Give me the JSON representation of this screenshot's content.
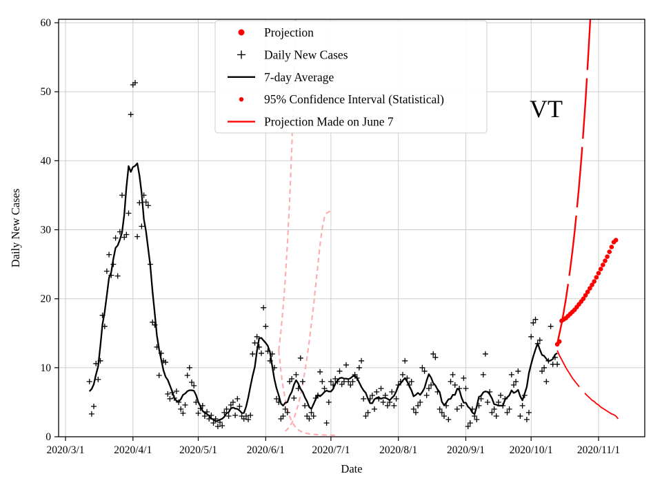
{
  "chart_data": {
    "type": "scatter",
    "title": "",
    "xlabel": "Date",
    "ylabel": "Daily New Cases",
    "annotation": "VT",
    "ylim": [
      0,
      60
    ],
    "grid": true,
    "legend_position": "upper center-left",
    "y_ticks": [
      "0",
      "10",
      "20",
      "30",
      "40",
      "50",
      "60"
    ],
    "x_ticks": [
      "2020/3/1",
      "2020/4/1",
      "2020/5/1",
      "2020/6/1",
      "2020/7/1",
      "2020/8/1",
      "2020/9/1",
      "2020/10/1",
      "2020/11/1"
    ],
    "colors": {
      "cases": "#000000",
      "average": "#000000",
      "projection": "#ff0000",
      "june_ci": "#ffabab",
      "grid": "#c8c8c8"
    },
    "legend": [
      {
        "label": "Projection",
        "marker": "dot",
        "color": "#ff0000",
        "r": 4.5
      },
      {
        "label": "Daily New Cases",
        "marker": "plus",
        "color": "#000000"
      },
      {
        "label": "7-day Average",
        "marker": "line",
        "color": "#000000"
      },
      {
        "label": "95% Confidence Interval (Statistical)",
        "marker": "dot",
        "color": "#ff0000",
        "r": 3.2
      },
      {
        "label": "Projection Made on June 7",
        "marker": "line",
        "color": "#ff0000"
      }
    ],
    "series": {
      "daily_new_cases": {
        "start_date": "2020/3/12",
        "values": [
          8.0,
          3.3,
          4.4,
          10.6,
          8.3,
          11.0,
          17.6,
          16.0,
          24.0,
          26.4,
          23.4,
          25.0,
          28.8,
          23.3,
          29.7,
          35.0,
          28.9,
          29.3,
          32.4,
          46.7,
          51.0,
          51.3,
          29.0,
          33.9,
          30.5,
          35.0,
          34.0,
          33.5,
          25.0,
          16.6,
          16.2,
          13.0,
          8.9,
          12.1,
          11.0,
          10.8,
          6.2,
          5.5,
          6.4,
          5.6,
          6.6,
          5.0,
          4.0,
          3.4,
          4.6,
          8.9,
          10.0,
          7.9,
          7.4,
          5.0,
          3.4,
          4.1,
          4.5,
          3.0,
          3.6,
          2.6,
          3.1,
          2.0,
          2.6,
          1.5,
          2.1,
          1.6,
          3.5,
          4.0,
          3.0,
          4.6,
          5.0,
          3.1,
          5.5,
          4.4,
          3.0,
          2.6,
          3.0,
          2.5,
          3.1,
          12.0,
          13.6,
          14.5,
          13.0,
          12.1,
          18.7,
          16.0,
          12.4,
          11.0,
          12.0,
          10.0,
          5.5,
          5.0,
          2.6,
          3.0,
          4.0,
          3.5,
          8.0,
          8.4,
          5.6,
          9.0,
          7.0,
          11.4,
          8.0,
          4.5,
          3.0,
          2.6,
          3.5,
          3.0,
          5.6,
          6.0,
          9.4,
          8.0,
          7.0,
          2.0,
          5.0,
          8.0,
          7.5,
          8.4,
          8.0,
          9.5,
          7.6,
          8.0,
          10.4,
          8.0,
          7.5,
          8.0,
          9.0,
          8.5,
          10.0,
          11.0,
          5.5,
          3.0,
          3.5,
          5.5,
          6.0,
          4.0,
          6.5,
          5.5,
          7.0,
          5.0,
          6.0,
          4.5,
          5.0,
          6.5,
          4.5,
          5.5,
          7.5,
          8.0,
          9.0,
          11.0,
          8.5,
          7.5,
          8.0,
          4.0,
          3.5,
          4.5,
          5.0,
          10.0,
          9.5,
          6.0,
          7.0,
          7.5,
          12.0,
          11.5,
          6.5,
          4.0,
          3.5,
          3.0,
          4.5,
          2.5,
          8.0,
          9.0,
          7.5,
          4.0,
          7.0,
          4.5,
          8.5,
          7.0,
          1.5,
          2.0,
          4.0,
          3.0,
          2.5,
          4.5,
          5.5,
          9.0,
          12.0,
          5.0,
          6.5,
          3.5,
          4.0,
          3.0,
          5.0,
          6.0,
          4.5,
          5.5,
          3.5,
          4.0,
          9.0,
          7.5,
          8.0,
          9.5,
          3.0,
          4.5,
          6.0,
          2.5,
          3.5,
          14.5,
          16.5,
          17.0,
          13.5,
          14.0,
          9.5,
          10.0,
          8.0,
          11.0,
          16.0,
          10.5,
          11.5,
          10.5
        ]
      },
      "seven_day_average": {
        "window": 7,
        "derived_from": "daily_new_cases"
      },
      "projection": {
        "start_date": "2020/10/13",
        "values": [
          13.4,
          13.8,
          16.8,
          17.0,
          17.2,
          17.5,
          17.8,
          18.1,
          18.4,
          18.8,
          19.2,
          19.6,
          20.0,
          20.5,
          21.0,
          21.5,
          22.0,
          22.5,
          23.1,
          23.7,
          24.3,
          24.9,
          25.5,
          26.1,
          26.8,
          27.5,
          28.2,
          28.5
        ]
      },
      "ci_upper_current": {
        "start_date": "2020/10/13",
        "values": [
          13.5,
          14.9,
          16.4,
          18.1,
          20.0,
          22.1,
          24.4,
          26.9,
          29.7,
          32.8,
          36.2,
          40.0,
          44.1,
          48.7,
          53.8,
          59.4,
          65.6,
          72.4
        ]
      },
      "ci_lower_current": {
        "start_date": "2020/10/13",
        "values": [
          12.5,
          11.8,
          11.2,
          10.6,
          10.0,
          9.5,
          9.0,
          8.5,
          8.1,
          7.7,
          7.3,
          6.9,
          6.6,
          6.2,
          5.9,
          5.6,
          5.3,
          5.1,
          4.8,
          4.6,
          4.3,
          4.1,
          3.9,
          3.7,
          3.5,
          3.3,
          3.2,
          3.0,
          2.6
        ]
      },
      "june7_upper": {
        "start_date": "2020/6/7",
        "values": [
          12.5,
          15.3,
          18.7,
          22.9,
          28.0,
          34.2,
          41.9,
          51.2,
          62.6
        ]
      },
      "june7_lower": {
        "start_date": "2020/6/7",
        "values": [
          12.5,
          9.5,
          7.2,
          5.4,
          4.0,
          3.0,
          2.2,
          1.7,
          1.3,
          1.0,
          0.8,
          0.65,
          0.55,
          0.48,
          0.42,
          0.38,
          0.35,
          0.32,
          0.3,
          0.28,
          0.27,
          0.26,
          0.25,
          0.24,
          0.23,
          0.22,
          0.21
        ]
      },
      "june7_mid": {
        "start_date": "2020/6/10",
        "values": [
          0.8,
          1.1,
          1.5,
          2.0,
          2.7,
          3.6,
          4.7,
          6.0,
          7.6,
          9.4,
          11.5,
          13.8,
          16.3,
          19.0,
          21.9,
          24.9,
          27.8,
          30.2,
          31.8,
          32.4,
          32.6,
          32.7,
          32.8
        ]
      }
    }
  }
}
